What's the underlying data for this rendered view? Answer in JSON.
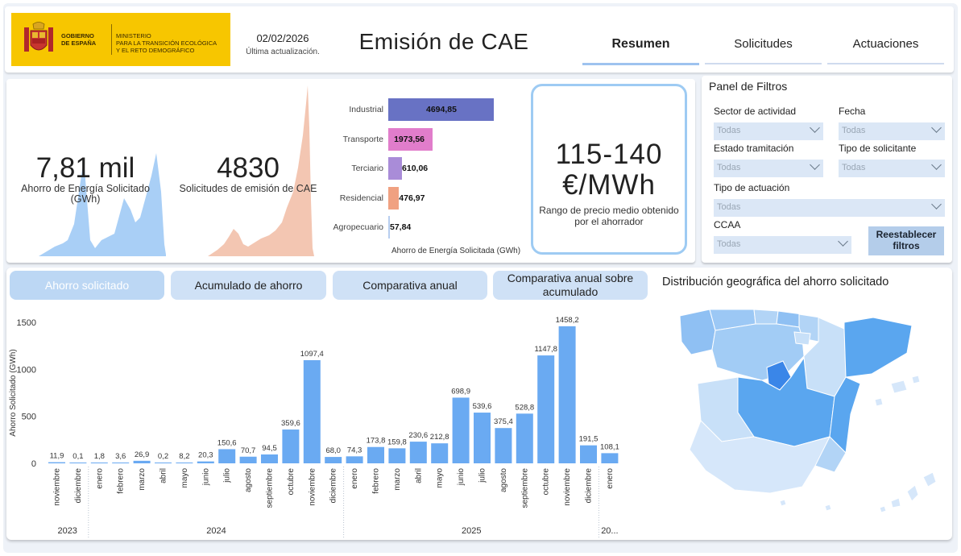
{
  "header": {
    "logo": {
      "gov": "GOBIERNO\nDE ESPAÑA",
      "ministry": "MINISTERIO\nPARA LA TRANSICIÓN ECOLÓGICA\nY EL RETO DEMOGRÁFICO"
    },
    "date": "02/02/2026",
    "date_caption": "Última actualización.",
    "title": "Emisión de CAE",
    "nav": [
      {
        "label": "Resumen",
        "active": true
      },
      {
        "label": "Solicitudes",
        "active": false
      },
      {
        "label": "Actuaciones",
        "active": false
      }
    ]
  },
  "kpis": {
    "savings": {
      "value": "7,81 mil",
      "label": "Ahorro de Energía Solicitado (GWh)"
    },
    "requests": {
      "value": "4830",
      "label": "Solicitudes de emisión de CAE"
    },
    "price": {
      "value": "115-140 €/MWh",
      "label": "Rango de precio medio obtenido por el ahorrador"
    }
  },
  "sector_chart": {
    "type": "bar",
    "orientation": "horizontal",
    "xlabel": "Ahorro de Energía Solicitada (GWh)",
    "categories": [
      "Industrial",
      "Transporte",
      "Terciario",
      "Residencial",
      "Agropecuario"
    ],
    "values": [
      4694.85,
      1973.56,
      610.06,
      476.97,
      57.84
    ],
    "value_labels": [
      "4694,85",
      "1973,56",
      "610,06",
      "476,97",
      "57,84"
    ],
    "colors": [
      "#6872c4",
      "#e17dcb",
      "#a98cd8",
      "#f0a181",
      "#b7cef0"
    ]
  },
  "filters": {
    "title": "Panel de Filtros",
    "sector": {
      "label": "Sector de actividad",
      "value": "Todas"
    },
    "fecha": {
      "label": "Fecha",
      "value": "Todas"
    },
    "estado": {
      "label": "Estado tramitación",
      "value": "Todas"
    },
    "tipo_solicitante": {
      "label": "Tipo de solicitante",
      "value": "Todas"
    },
    "tipo_actuacion": {
      "label": "Tipo de actuación",
      "value": "Todas"
    },
    "ccaa": {
      "label": "CCAA",
      "value": "Todas"
    },
    "reset_label": "Reestablecer filtros"
  },
  "tabs": [
    {
      "label": "Ahorro solicitado",
      "active": true
    },
    {
      "label": "Acumulado de ahorro",
      "active": false
    },
    {
      "label": "Comparativa anual",
      "active": false
    },
    {
      "label": "Comparativa anual sobre acumulado",
      "active": false
    }
  ],
  "geo_title": "Distribución geográfica del ahorro solicitado",
  "chart_data": {
    "type": "bar",
    "ylabel": "Ahorro Solicitado (GWh)",
    "ylim": [
      0,
      1500
    ],
    "yticks": [
      0,
      500,
      1000,
      1500
    ],
    "bar_color": "#6aaaf2",
    "categories": [
      "noviembre",
      "diciembre",
      "enero",
      "febrero",
      "marzo",
      "abril",
      "mayo",
      "junio",
      "julio",
      "agosto",
      "septiembre",
      "octubre",
      "noviembre",
      "diciembre",
      "enero",
      "febrero",
      "marzo",
      "abril",
      "mayo",
      "junio",
      "julio",
      "agosto",
      "septiembre",
      "octubre",
      "noviembre",
      "diciembre",
      "enero"
    ],
    "values": [
      11.9,
      0.1,
      1.8,
      3.6,
      26.9,
      0.2,
      8.2,
      20.3,
      150.6,
      70.7,
      94.5,
      359.6,
      1097.4,
      68.0,
      74.3,
      173.8,
      159.8,
      230.6,
      212.8,
      698.9,
      539.6,
      375.4,
      528.8,
      1147.8,
      1458.2,
      191.5,
      108.1
    ],
    "value_labels": [
      "11,9",
      "0,1",
      "1,8",
      "3,6",
      "26,9",
      "0,2",
      "8,2",
      "20,3",
      "150,6",
      "70,7",
      "94,5",
      "359,6",
      "1097,4",
      "68,0",
      "74,3",
      "173,8",
      "159,8",
      "230,6",
      "212,8",
      "698,9",
      "539,6",
      "375,4",
      "528,8",
      "1147,8",
      "1458,2",
      "191,5",
      "108,1"
    ],
    "years": [
      {
        "label": "2023",
        "start": 0,
        "end": 1
      },
      {
        "label": "2024",
        "start": 2,
        "end": 13
      },
      {
        "label": "2025",
        "start": 14,
        "end": 25
      },
      {
        "label": "20...",
        "start": 26,
        "end": 26
      }
    ]
  }
}
